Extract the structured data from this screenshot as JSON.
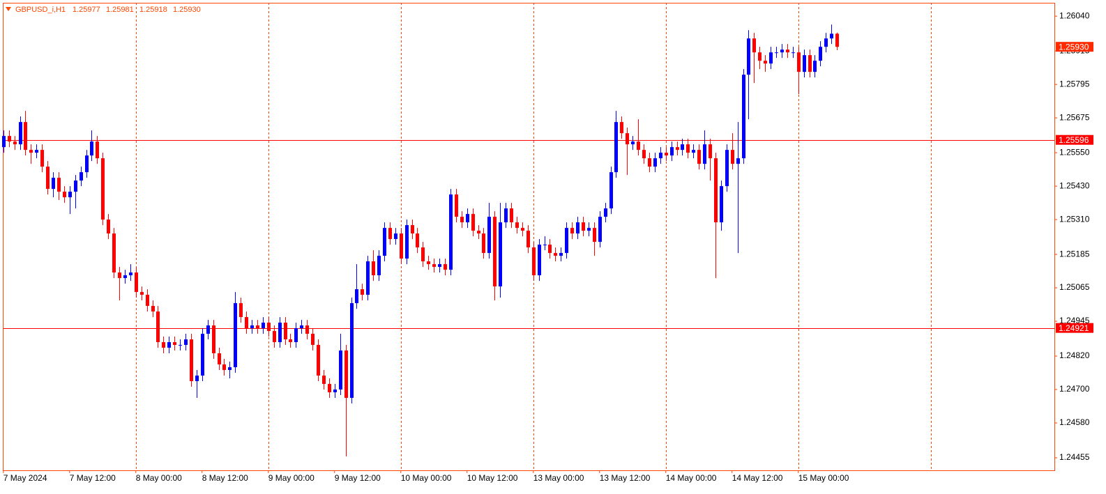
{
  "chart_data": {
    "type": "candlestick",
    "symbol": "GBPUSD_i,H1",
    "header_ohlc": [
      "1.25977",
      "1.25981",
      "1.25918",
      "1.25930"
    ],
    "up_color": "#0000ff",
    "down_color": "#ff0000",
    "axis_color": "#ff4500",
    "xlim": [
      -0.1,
      190.4
    ],
    "ylim": [
      1.2441,
      1.26088
    ],
    "yticks": [
      {
        "value": 1.2604,
        "label": "1.26040"
      },
      {
        "value": 1.25915,
        "label": "1.25915"
      },
      {
        "value": 1.25795,
        "label": "1.25795"
      },
      {
        "value": 1.25675,
        "label": "1.25675"
      },
      {
        "value": 1.2555,
        "label": "1.25550"
      },
      {
        "value": 1.2543,
        "label": "1.25430"
      },
      {
        "value": 1.2531,
        "label": "1.25310"
      },
      {
        "value": 1.25185,
        "label": "1.25185"
      },
      {
        "value": 1.25065,
        "label": "1.25065"
      },
      {
        "value": 1.24945,
        "label": "1.24945"
      },
      {
        "value": 1.2482,
        "label": "1.24820"
      },
      {
        "value": 1.247,
        "label": "1.24700"
      },
      {
        "value": 1.2458,
        "label": "1.24580"
      },
      {
        "value": 1.24455,
        "label": "1.24455"
      }
    ],
    "xticks": [
      {
        "value": 0,
        "label": "7 May 2024"
      },
      {
        "value": 12,
        "label": "7 May 12:00"
      },
      {
        "value": 24,
        "label": "8 May 00:00"
      },
      {
        "value": 36,
        "label": "8 May 12:00"
      },
      {
        "value": 48,
        "label": "9 May 00:00"
      },
      {
        "value": 60,
        "label": "9 May 12:00"
      },
      {
        "value": 72,
        "label": "10 May 00:00"
      },
      {
        "value": 84,
        "label": "10 May 12:00"
      },
      {
        "value": 96,
        "label": "13 May 00:00"
      },
      {
        "value": 108,
        "label": "13 May 12:00"
      },
      {
        "value": 120,
        "label": "14 May 00:00"
      },
      {
        "value": 132,
        "label": "14 May 12:00"
      },
      {
        "value": 144,
        "label": "15 May 00:00"
      }
    ],
    "vgrid": [
      24,
      48,
      72,
      96,
      120,
      144,
      168
    ],
    "hlines": [
      {
        "value": 1.25596,
        "label": "1.25596"
      },
      {
        "value": 1.24921,
        "label": "1.24921"
      }
    ],
    "bid": {
      "value": 1.2593,
      "label": "1.25930"
    },
    "candles": [
      [
        1.2557,
        1.2563,
        1.2555,
        1.2561
      ],
      [
        1.2561,
        1.2563,
        1.2557,
        1.2559
      ],
      [
        1.2559,
        1.2561,
        1.2556,
        1.2558
      ],
      [
        1.2558,
        1.2568,
        1.2556,
        1.2566
      ],
      [
        1.2566,
        1.257,
        1.2554,
        1.2556
      ],
      [
        1.2556,
        1.2558,
        1.2551,
        1.2555
      ],
      [
        1.2555,
        1.2558,
        1.2553,
        1.2556
      ],
      [
        1.2556,
        1.2558,
        1.2548,
        1.255
      ],
      [
        1.255,
        1.2552,
        1.254,
        1.2542
      ],
      [
        1.2542,
        1.2548,
        1.2539,
        1.2546
      ],
      [
        1.2546,
        1.2548,
        1.2538,
        1.2541
      ],
      [
        1.2541,
        1.2543,
        1.2537,
        1.2539
      ],
      [
        1.2539,
        1.2543,
        1.2533,
        1.2541
      ],
      [
        1.2541,
        1.2547,
        1.2535,
        1.2545
      ],
      [
        1.2545,
        1.255,
        1.2543,
        1.2548
      ],
      [
        1.2548,
        1.2556,
        1.2546,
        1.2554
      ],
      [
        1.2554,
        1.2563,
        1.2552,
        1.2559
      ],
      [
        1.2559,
        1.2561,
        1.2551,
        1.2553
      ],
      [
        1.2553,
        1.2555,
        1.2529,
        1.2531
      ],
      [
        1.2531,
        1.2533,
        1.2524,
        1.2526
      ],
      [
        1.2526,
        1.2528,
        1.251,
        1.2512
      ],
      [
        1.2512,
        1.2514,
        1.2502,
        1.251
      ],
      [
        1.251,
        1.2513,
        1.2508,
        1.2511
      ],
      [
        1.2511,
        1.2515,
        1.2509,
        1.2512
      ],
      [
        1.2512,
        1.2514,
        1.2503,
        1.2505
      ],
      [
        1.2505,
        1.2507,
        1.2502,
        1.2504
      ],
      [
        1.2504,
        1.2506,
        1.2498,
        1.25
      ],
      [
        1.25,
        1.2502,
        1.2496,
        1.2498
      ],
      [
        1.2498,
        1.25,
        1.2485,
        1.2487
      ],
      [
        1.2487,
        1.2489,
        1.2483,
        1.2485
      ],
      [
        1.2485,
        1.2489,
        1.2483,
        1.2487
      ],
      [
        1.2487,
        1.2489,
        1.2484,
        1.2486
      ],
      [
        1.2486,
        1.2488,
        1.2484,
        1.2486
      ],
      [
        1.2486,
        1.249,
        1.2484,
        1.2488
      ],
      [
        1.2488,
        1.249,
        1.2471,
        1.2473
      ],
      [
        1.2473,
        1.2477,
        1.2467,
        1.2475
      ],
      [
        1.2475,
        1.2492,
        1.2473,
        1.249
      ],
      [
        1.249,
        1.2495,
        1.2488,
        1.2493
      ],
      [
        1.2493,
        1.2495,
        1.2481,
        1.2483
      ],
      [
        1.2483,
        1.2485,
        1.2477,
        1.2479
      ],
      [
        1.2479,
        1.2481,
        1.2475,
        1.2477
      ],
      [
        1.2477,
        1.248,
        1.2474,
        1.2478
      ],
      [
        1.2478,
        1.2505,
        1.2476,
        1.2501
      ],
      [
        1.2501,
        1.2503,
        1.2494,
        1.2496
      ],
      [
        1.2496,
        1.2498,
        1.249,
        1.2492
      ],
      [
        1.2492,
        1.2495,
        1.249,
        1.2493
      ],
      [
        1.2493,
        1.2495,
        1.249,
        1.2492
      ],
      [
        1.2492,
        1.2496,
        1.249,
        1.2494
      ],
      [
        1.2494,
        1.2496,
        1.2489,
        1.2491
      ],
      [
        1.2491,
        1.2493,
        1.2485,
        1.2487
      ],
      [
        1.2487,
        1.2496,
        1.2485,
        1.2494
      ],
      [
        1.2494,
        1.2496,
        1.2486,
        1.2488
      ],
      [
        1.2488,
        1.249,
        1.2485,
        1.2487
      ],
      [
        1.2487,
        1.2494,
        1.2485,
        1.2492
      ],
      [
        1.2492,
        1.2495,
        1.249,
        1.2493
      ],
      [
        1.2493,
        1.2495,
        1.2488,
        1.249
      ],
      [
        1.249,
        1.2492,
        1.2484,
        1.2486
      ],
      [
        1.2486,
        1.2488,
        1.2473,
        1.2475
      ],
      [
        1.2475,
        1.2477,
        1.247,
        1.2472
      ],
      [
        1.2472,
        1.2474,
        1.2467,
        1.2469
      ],
      [
        1.2469,
        1.2472,
        1.2467,
        1.247
      ],
      [
        1.247,
        1.249,
        1.2468,
        1.2484
      ],
      [
        1.2484,
        1.2486,
        1.2446,
        1.2467
      ],
      [
        1.2467,
        1.2503,
        1.2465,
        1.2501
      ],
      [
        1.2501,
        1.2515,
        1.2499,
        1.2506
      ],
      [
        1.2506,
        1.2508,
        1.2502,
        1.2504
      ],
      [
        1.2504,
        1.2518,
        1.2502,
        1.2516
      ],
      [
        1.2516,
        1.252,
        1.2509,
        1.2511
      ],
      [
        1.2511,
        1.252,
        1.2509,
        1.2518
      ],
      [
        1.2518,
        1.253,
        1.2516,
        1.2528
      ],
      [
        1.2528,
        1.253,
        1.2522,
        1.2524
      ],
      [
        1.2524,
        1.2528,
        1.2522,
        1.2526
      ],
      [
        1.2526,
        1.2528,
        1.2515,
        1.2517
      ],
      [
        1.2517,
        1.2531,
        1.2515,
        1.2529
      ],
      [
        1.2529,
        1.2531,
        1.2524,
        1.2526
      ],
      [
        1.2526,
        1.2528,
        1.2519,
        1.2521
      ],
      [
        1.2521,
        1.2523,
        1.2514,
        1.2516
      ],
      [
        1.2516,
        1.2518,
        1.2513,
        1.2515
      ],
      [
        1.2515,
        1.2517,
        1.2512,
        1.2514
      ],
      [
        1.2514,
        1.2517,
        1.2512,
        1.2515
      ],
      [
        1.2515,
        1.2517,
        1.2511,
        1.2513
      ],
      [
        1.2513,
        1.2542,
        1.2511,
        1.254
      ],
      [
        1.254,
        1.2542,
        1.253,
        1.2532
      ],
      [
        1.2532,
        1.2534,
        1.2528,
        1.253
      ],
      [
        1.253,
        1.2535,
        1.2528,
        1.2533
      ],
      [
        1.2533,
        1.2535,
        1.2525,
        1.2527
      ],
      [
        1.2527,
        1.2529,
        1.2524,
        1.2526
      ],
      [
        1.2526,
        1.2528,
        1.2517,
        1.2519
      ],
      [
        1.2519,
        1.2537,
        1.2517,
        1.2532
      ],
      [
        1.2532,
        1.2534,
        1.2502,
        1.2507
      ],
      [
        1.2507,
        1.2537,
        1.2503,
        1.253
      ],
      [
        1.253,
        1.2537,
        1.2528,
        1.2535
      ],
      [
        1.2535,
        1.2537,
        1.2528,
        1.253
      ],
      [
        1.253,
        1.2532,
        1.2526,
        1.2528
      ],
      [
        1.2528,
        1.253,
        1.2525,
        1.2527
      ],
      [
        1.2527,
        1.2529,
        1.2519,
        1.2521
      ],
      [
        1.2521,
        1.2523,
        1.2509,
        1.2511
      ],
      [
        1.2511,
        1.2524,
        1.2509,
        1.2522
      ],
      [
        1.2522,
        1.2525,
        1.252,
        1.2522
      ],
      [
        1.2522,
        1.2524,
        1.2517,
        1.2519
      ],
      [
        1.2519,
        1.2521,
        1.2516,
        1.2518
      ],
      [
        1.2518,
        1.2521,
        1.2516,
        1.2519
      ],
      [
        1.2519,
        1.253,
        1.2517,
        1.2528
      ],
      [
        1.2528,
        1.253,
        1.2524,
        1.2526
      ],
      [
        1.2526,
        1.2532,
        1.2524,
        1.253
      ],
      [
        1.253,
        1.2532,
        1.2525,
        1.2527
      ],
      [
        1.2527,
        1.253,
        1.2525,
        1.2528
      ],
      [
        1.2528,
        1.253,
        1.2518,
        1.2523
      ],
      [
        1.2523,
        1.2534,
        1.2521,
        1.2532
      ],
      [
        1.2532,
        1.2537,
        1.253,
        1.2535
      ],
      [
        1.2535,
        1.255,
        1.2533,
        1.2548
      ],
      [
        1.2548,
        1.257,
        1.2546,
        1.2566
      ],
      [
        1.2566,
        1.2568,
        1.256,
        1.2562
      ],
      [
        1.2562,
        1.2564,
        1.2547,
        1.2558
      ],
      [
        1.2558,
        1.2561,
        1.2556,
        1.2559
      ],
      [
        1.2559,
        1.2567,
        1.2554,
        1.2556
      ],
      [
        1.2556,
        1.2558,
        1.2551,
        1.2553
      ],
      [
        1.2553,
        1.2555,
        1.2548,
        1.255
      ],
      [
        1.255,
        1.2555,
        1.2548,
        1.2553
      ],
      [
        1.2553,
        1.2557,
        1.2551,
        1.2555
      ],
      [
        1.2555,
        1.2557,
        1.2552,
        1.2554
      ],
      [
        1.2554,
        1.2559,
        1.2552,
        1.2557
      ],
      [
        1.2557,
        1.2559,
        1.2554,
        1.2556
      ],
      [
        1.2556,
        1.256,
        1.2554,
        1.2558
      ],
      [
        1.2558,
        1.256,
        1.2553,
        1.2555
      ],
      [
        1.2555,
        1.2558,
        1.2553,
        1.2556
      ],
      [
        1.2556,
        1.2558,
        1.2549,
        1.2551
      ],
      [
        1.2551,
        1.2563,
        1.2549,
        1.2558
      ],
      [
        1.2558,
        1.256,
        1.2545,
        1.2553
      ],
      [
        1.2553,
        1.2555,
        1.251,
        1.253
      ],
      [
        1.253,
        1.2545,
        1.2527,
        1.2543
      ],
      [
        1.2543,
        1.2558,
        1.2541,
        1.2556
      ],
      [
        1.2556,
        1.2562,
        1.2549,
        1.2551
      ],
      [
        1.2551,
        1.2566,
        1.2519,
        1.2553
      ],
      [
        1.2553,
        1.2585,
        1.2551,
        1.2583
      ],
      [
        1.2583,
        1.2599,
        1.2567,
        1.2596
      ],
      [
        1.2596,
        1.2598,
        1.258,
        1.2591
      ],
      [
        1.2591,
        1.2593,
        1.2585,
        1.2588
      ],
      [
        1.2588,
        1.259,
        1.2584,
        1.2587
      ],
      [
        1.2587,
        1.2593,
        1.2585,
        1.2591
      ],
      [
        1.2591,
        1.2593,
        1.2589,
        1.2591
      ],
      [
        1.2591,
        1.2594,
        1.2589,
        1.2592
      ],
      [
        1.2592,
        1.2594,
        1.2589,
        1.2591
      ],
      [
        1.2591,
        1.2593,
        1.2589,
        1.2591
      ],
      [
        1.2591,
        1.2593,
        1.2576,
        1.2584
      ],
      [
        1.2584,
        1.2592,
        1.2582,
        1.259
      ],
      [
        1.259,
        1.2592,
        1.2582,
        1.2584
      ],
      [
        1.2584,
        1.259,
        1.2582,
        1.2588
      ],
      [
        1.2588,
        1.2595,
        1.2586,
        1.2593
      ],
      [
        1.2593,
        1.2598,
        1.2591,
        1.2596
      ],
      [
        1.2596,
        1.2601,
        1.2594,
        1.25977
      ],
      [
        1.25977,
        1.25981,
        1.25918,
        1.2593
      ]
    ]
  }
}
